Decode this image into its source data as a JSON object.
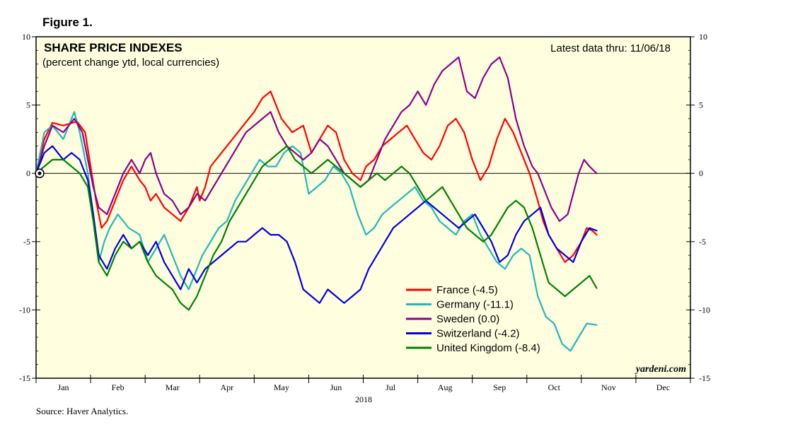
{
  "figure_label": "Figure 1.",
  "source": "Source: Haver Analytics.",
  "chart_data": {
    "type": "line",
    "title": "SHARE PRICE INDEXES",
    "subtitle": "(percent change ytd, local currencies)",
    "latest_note": "Latest data thru: 11/06/18",
    "watermark": "yardeni.com",
    "xlabel": "2018",
    "ylabel": "",
    "ylim": [
      -15,
      10
    ],
    "yticks": [
      -15,
      -10,
      -5,
      0,
      5,
      10
    ],
    "ytick_labels": [
      "-15",
      "-10",
      "-5",
      "0",
      "5",
      "10"
    ],
    "xlim": [
      0,
      12
    ],
    "months": [
      "Jan",
      "Feb",
      "Mar",
      "Apr",
      "May",
      "Jun",
      "Jul",
      "Aug",
      "Sep",
      "Oct",
      "Nov",
      "Dec"
    ],
    "background": "#ffffe0",
    "zero_line": true,
    "legend_position": "lower-center-right",
    "series": [
      {
        "name": "France (-4.5)",
        "color": "#ff0000",
        "x": [
          0,
          0.15,
          0.3,
          0.5,
          0.75,
          0.9,
          1.0,
          1.1,
          1.2,
          1.3,
          1.45,
          1.6,
          1.75,
          1.9,
          2.0,
          2.1,
          2.2,
          2.35,
          2.5,
          2.65,
          2.8,
          2.95,
          3.0,
          3.1,
          3.2,
          3.4,
          3.6,
          3.8,
          4.0,
          4.15,
          4.3,
          4.5,
          4.7,
          4.9,
          5.05,
          5.2,
          5.35,
          5.5,
          5.65,
          5.8,
          5.95,
          6.05,
          6.2,
          6.35,
          6.5,
          6.65,
          6.8,
          6.95,
          7.1,
          7.25,
          7.4,
          7.55,
          7.7,
          7.85,
          8.0,
          8.15,
          8.3,
          8.45,
          8.6,
          8.75,
          8.9,
          9.05,
          9.2,
          9.3,
          9.4,
          9.55,
          9.7,
          9.85,
          10.0,
          10.1,
          10.2,
          10.28
        ],
        "values": [
          0,
          2.5,
          3.7,
          3.5,
          3.8,
          3.0,
          0.5,
          -2.0,
          -4.0,
          -3.5,
          -2.0,
          -0.5,
          0.5,
          -0.5,
          -1.0,
          -2.0,
          -1.5,
          -2.5,
          -3.0,
          -3.5,
          -2.5,
          -1.0,
          -2.0,
          -1.0,
          0.5,
          1.5,
          2.5,
          3.5,
          4.5,
          5.5,
          6.0,
          4.0,
          3.0,
          3.5,
          1.5,
          2.5,
          3.5,
          3.0,
          1.0,
          0.0,
          -0.5,
          0.5,
          1.0,
          2.0,
          2.5,
          3.0,
          3.5,
          2.5,
          1.5,
          1.0,
          2.0,
          3.5,
          4.0,
          3.0,
          1.0,
          -0.5,
          0.5,
          2.5,
          4.0,
          3.0,
          1.5,
          0.0,
          -2.0,
          -3.5,
          -4.5,
          -5.5,
          -6.5,
          -6.0,
          -5.0,
          -4.0,
          -4.2,
          -4.5
        ]
      },
      {
        "name": "Germany (-11.1)",
        "color": "#20b8b8",
        "x": [
          0,
          0.15,
          0.3,
          0.5,
          0.7,
          0.8,
          0.95,
          1.05,
          1.15,
          1.25,
          1.35,
          1.5,
          1.7,
          1.9,
          2.05,
          2.2,
          2.35,
          2.5,
          2.65,
          2.8,
          2.95,
          3.05,
          3.2,
          3.35,
          3.5,
          3.65,
          3.8,
          3.95,
          4.1,
          4.25,
          4.4,
          4.55,
          4.7,
          4.85,
          5.0,
          5.15,
          5.3,
          5.45,
          5.6,
          5.75,
          5.9,
          6.05,
          6.2,
          6.35,
          6.5,
          6.65,
          6.8,
          6.95,
          7.1,
          7.25,
          7.4,
          7.55,
          7.7,
          7.85,
          8.0,
          8.15,
          8.3,
          8.45,
          8.6,
          8.75,
          8.9,
          9.05,
          9.2,
          9.35,
          9.5,
          9.65,
          9.8,
          9.95,
          10.1,
          10.28
        ],
        "values": [
          0,
          3.0,
          3.5,
          2.5,
          4.5,
          3.0,
          0.0,
          -3.0,
          -6.5,
          -5.0,
          -4.0,
          -3.0,
          -4.0,
          -4.5,
          -6.5,
          -5.5,
          -4.5,
          -6.0,
          -7.5,
          -8.5,
          -7.0,
          -6.0,
          -5.0,
          -4.0,
          -3.5,
          -2.0,
          -1.0,
          0.0,
          1.0,
          0.5,
          0.5,
          1.5,
          2.0,
          1.5,
          -1.5,
          -1.0,
          -0.5,
          0.5,
          0.0,
          -1.0,
          -3.0,
          -4.5,
          -4.0,
          -3.0,
          -2.5,
          -2.0,
          -1.5,
          -1.0,
          -2.0,
          -2.5,
          -3.5,
          -4.0,
          -4.5,
          -3.5,
          -3.0,
          -4.5,
          -5.5,
          -6.5,
          -7.0,
          -6.0,
          -5.5,
          -6.0,
          -9.0,
          -10.5,
          -11.0,
          -12.5,
          -13.0,
          -12.0,
          -11.0,
          -11.1
        ]
      },
      {
        "name": "Sweden (0.0)",
        "color": "#8b008b",
        "x": [
          0,
          0.15,
          0.3,
          0.5,
          0.7,
          0.85,
          0.95,
          1.05,
          1.15,
          1.3,
          1.45,
          1.6,
          1.75,
          1.9,
          2.0,
          2.1,
          2.2,
          2.35,
          2.5,
          2.65,
          2.8,
          2.95,
          3.1,
          3.25,
          3.4,
          3.55,
          3.7,
          3.85,
          4.0,
          4.15,
          4.3,
          4.45,
          4.6,
          4.75,
          4.9,
          5.05,
          5.2,
          5.35,
          5.5,
          5.65,
          5.8,
          5.95,
          6.1,
          6.25,
          6.4,
          6.55,
          6.7,
          6.85,
          7.0,
          7.15,
          7.3,
          7.45,
          7.6,
          7.75,
          7.9,
          8.05,
          8.2,
          8.35,
          8.5,
          8.65,
          8.8,
          8.95,
          9.1,
          9.2,
          9.3,
          9.45,
          9.6,
          9.75,
          9.85,
          9.95,
          10.05,
          10.15,
          10.28
        ],
        "values": [
          0,
          2.0,
          3.5,
          3.0,
          4.0,
          3.0,
          1.0,
          -1.0,
          -2.5,
          -3.0,
          -1.5,
          0.0,
          1.0,
          0.0,
          1.0,
          1.5,
          0.0,
          -1.5,
          -2.0,
          -3.0,
          -2.5,
          -1.5,
          -2.0,
          -1.0,
          0.0,
          1.0,
          2.0,
          3.0,
          3.5,
          4.0,
          4.5,
          3.0,
          2.0,
          1.5,
          1.0,
          1.5,
          2.5,
          2.0,
          1.0,
          0.0,
          -0.5,
          -1.0,
          -0.5,
          1.0,
          2.5,
          3.5,
          4.5,
          5.0,
          6.0,
          5.0,
          6.5,
          7.5,
          8.0,
          8.5,
          6.0,
          5.5,
          7.0,
          8.0,
          8.5,
          7.0,
          4.0,
          2.0,
          0.5,
          0.0,
          -1.0,
          -2.5,
          -3.5,
          -3.0,
          -1.5,
          0.0,
          1.0,
          0.5,
          0.0
        ]
      },
      {
        "name": "Switzerland (-4.2)",
        "color": "#0000e0",
        "x": [
          0,
          0.15,
          0.3,
          0.5,
          0.65,
          0.8,
          0.95,
          1.05,
          1.15,
          1.3,
          1.45,
          1.6,
          1.75,
          1.9,
          2.05,
          2.2,
          2.35,
          2.5,
          2.65,
          2.8,
          2.95,
          3.1,
          3.25,
          3.4,
          3.55,
          3.7,
          3.85,
          4.0,
          4.15,
          4.3,
          4.45,
          4.6,
          4.75,
          4.9,
          5.05,
          5.2,
          5.35,
          5.5,
          5.65,
          5.8,
          5.95,
          6.1,
          6.25,
          6.4,
          6.55,
          6.7,
          6.85,
          7.0,
          7.15,
          7.3,
          7.45,
          7.6,
          7.75,
          7.9,
          8.05,
          8.2,
          8.35,
          8.5,
          8.65,
          8.8,
          8.95,
          9.1,
          9.25,
          9.4,
          9.55,
          9.7,
          9.85,
          10.0,
          10.15,
          10.28
        ],
        "values": [
          0,
          1.5,
          2.0,
          1.0,
          1.5,
          1.0,
          -0.5,
          -3.0,
          -6.0,
          -7.0,
          -5.5,
          -4.5,
          -5.5,
          -5.0,
          -6.0,
          -5.0,
          -6.5,
          -7.5,
          -8.5,
          -7.0,
          -8.0,
          -7.0,
          -6.5,
          -6.0,
          -5.5,
          -5.0,
          -5.0,
          -4.5,
          -4.0,
          -4.5,
          -4.5,
          -5.0,
          -6.5,
          -8.5,
          -9.0,
          -9.5,
          -8.5,
          -9.0,
          -9.5,
          -9.0,
          -8.5,
          -7.0,
          -6.0,
          -5.0,
          -4.0,
          -3.5,
          -3.0,
          -2.5,
          -2.0,
          -2.5,
          -3.0,
          -3.5,
          -4.0,
          -3.5,
          -3.0,
          -4.0,
          -5.0,
          -6.5,
          -6.0,
          -4.5,
          -3.5,
          -3.0,
          -2.5,
          -4.5,
          -5.5,
          -6.0,
          -6.5,
          -5.0,
          -4.0,
          -4.2
        ]
      },
      {
        "name": "United Kingdom (-8.4)",
        "color": "#008000",
        "x": [
          0,
          0.15,
          0.3,
          0.5,
          0.65,
          0.8,
          0.95,
          1.05,
          1.15,
          1.3,
          1.45,
          1.6,
          1.75,
          1.9,
          2.05,
          2.2,
          2.35,
          2.5,
          2.65,
          2.8,
          2.95,
          3.1,
          3.25,
          3.4,
          3.55,
          3.7,
          3.85,
          4.0,
          4.15,
          4.3,
          4.45,
          4.6,
          4.75,
          4.9,
          5.05,
          5.2,
          5.35,
          5.5,
          5.65,
          5.8,
          5.95,
          6.1,
          6.25,
          6.4,
          6.55,
          6.7,
          6.85,
          7.0,
          7.15,
          7.3,
          7.45,
          7.6,
          7.75,
          7.9,
          8.05,
          8.2,
          8.35,
          8.5,
          8.65,
          8.8,
          8.95,
          9.1,
          9.25,
          9.4,
          9.55,
          9.7,
          9.85,
          10.0,
          10.15,
          10.28
        ],
        "values": [
          0,
          0.5,
          1.0,
          1.0,
          0.5,
          0.0,
          -1.0,
          -3.5,
          -6.5,
          -7.5,
          -6.0,
          -5.0,
          -5.5,
          -5.0,
          -6.5,
          -7.5,
          -8.0,
          -8.5,
          -9.5,
          -10.0,
          -9.0,
          -7.5,
          -6.0,
          -5.0,
          -3.5,
          -2.5,
          -1.5,
          -0.5,
          0.5,
          1.0,
          1.5,
          2.0,
          1.0,
          0.5,
          0.0,
          0.5,
          1.0,
          0.5,
          0.0,
          -0.5,
          -1.0,
          -0.5,
          0.0,
          -0.5,
          0.0,
          0.5,
          0.0,
          -1.0,
          -2.0,
          -1.5,
          -1.0,
          -2.0,
          -3.0,
          -4.0,
          -4.5,
          -5.0,
          -4.5,
          -3.5,
          -2.5,
          -2.0,
          -2.5,
          -4.0,
          -6.0,
          -8.0,
          -8.5,
          -9.0,
          -8.5,
          -8.0,
          -7.5,
          -8.4
        ]
      }
    ]
  }
}
